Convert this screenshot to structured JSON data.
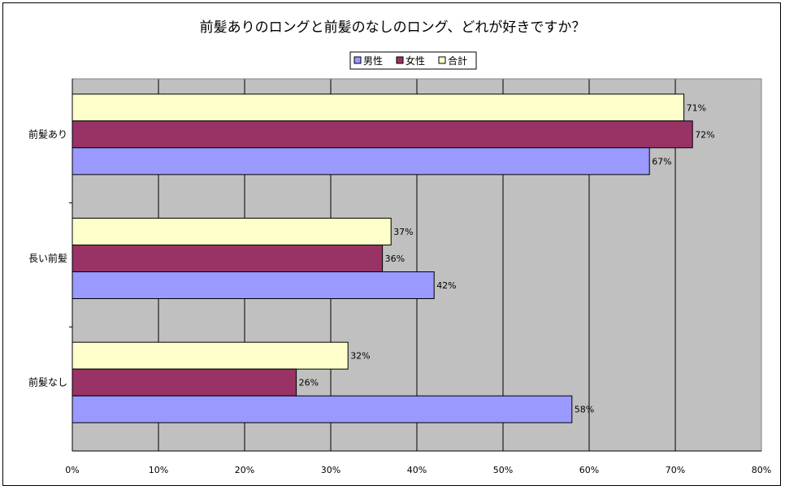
{
  "chart_data": {
    "type": "bar",
    "orientation": "horizontal",
    "title": "前髪ありのロングと前髪のなしのロング、どれが好きですか？",
    "categories": [
      "前髪あり",
      "長い前髪",
      "前髪なし"
    ],
    "series": [
      {
        "name": "男性",
        "color": "#9999ff",
        "values": [
          67,
          42,
          58
        ],
        "labels": [
          "67%",
          "42%",
          "58%"
        ]
      },
      {
        "name": "女性",
        "color": "#993366",
        "values": [
          72,
          36,
          26
        ],
        "labels": [
          "72%",
          "36%",
          "26%"
        ]
      },
      {
        "name": "合計",
        "color": "#ffffcc",
        "values": [
          71,
          37,
          32
        ],
        "labels": [
          "71%",
          "37%",
          "32%"
        ]
      }
    ],
    "xlim": [
      0,
      80
    ],
    "xticks": [
      "0%",
      "10%",
      "20%",
      "30%",
      "40%",
      "50%",
      "60%",
      "70%",
      "80%"
    ],
    "grid": true,
    "plot_background": "#c0c0c0",
    "legend_position": "top"
  }
}
